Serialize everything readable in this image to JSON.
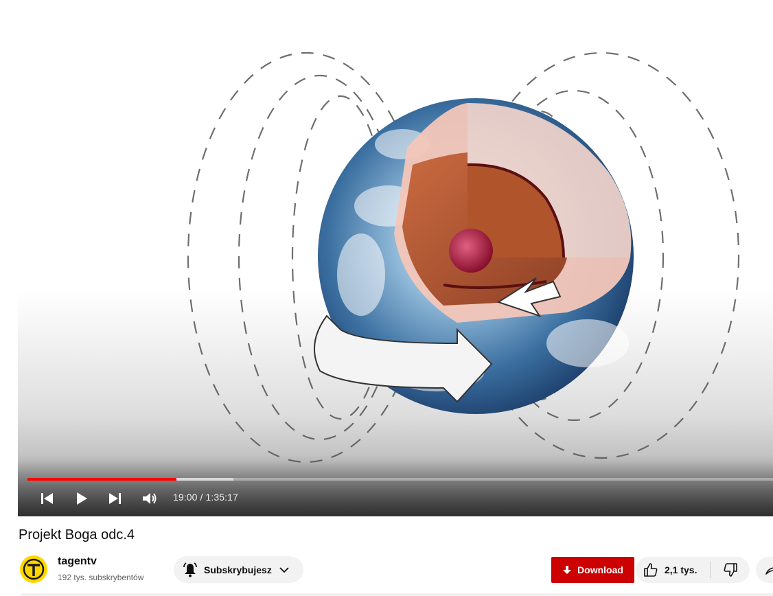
{
  "player": {
    "current_time": "19:00",
    "duration": "1:35:17",
    "time_separator": " / ",
    "progress_played": 0.2,
    "progress_buffered": 0.276,
    "colors": {
      "progress": "#ff0000"
    },
    "icons": [
      "previous-icon",
      "play-icon",
      "next-icon",
      "volume-icon"
    ]
  },
  "video": {
    "title": "Projekt Boga odc.4"
  },
  "channel": {
    "name": "tagentv",
    "subscribers": "192 tys. subskrybentów",
    "avatar_color": "#ffd600"
  },
  "actions": {
    "subscribe_label": "Subskrybujesz",
    "download_label": "Download",
    "download_color": "#cc0000",
    "like_count": "2,1 tys.",
    "icons": [
      "bell-icon",
      "chevron-down-icon",
      "download-icon",
      "thumbs-up-icon",
      "thumbs-down-icon",
      "share-icon"
    ]
  }
}
